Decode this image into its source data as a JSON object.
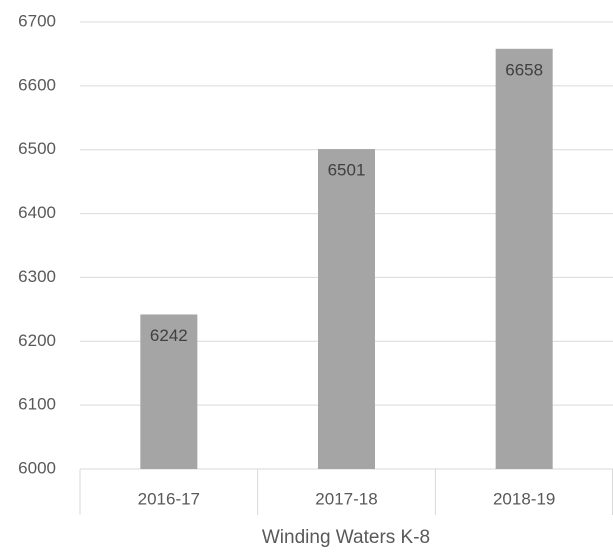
{
  "chart_data": {
    "type": "bar",
    "x_label": "Winding Waters K-8",
    "categories": [
      "2016-17",
      "2017-18",
      "2018-19"
    ],
    "values": [
      6242,
      6501,
      6658
    ],
    "color": "#a5a5a5",
    "ylim": [
      6000,
      6700
    ],
    "yticks": [
      6000,
      6100,
      6200,
      6300,
      6400,
      6500,
      6600,
      6700
    ],
    "grid": true
  }
}
